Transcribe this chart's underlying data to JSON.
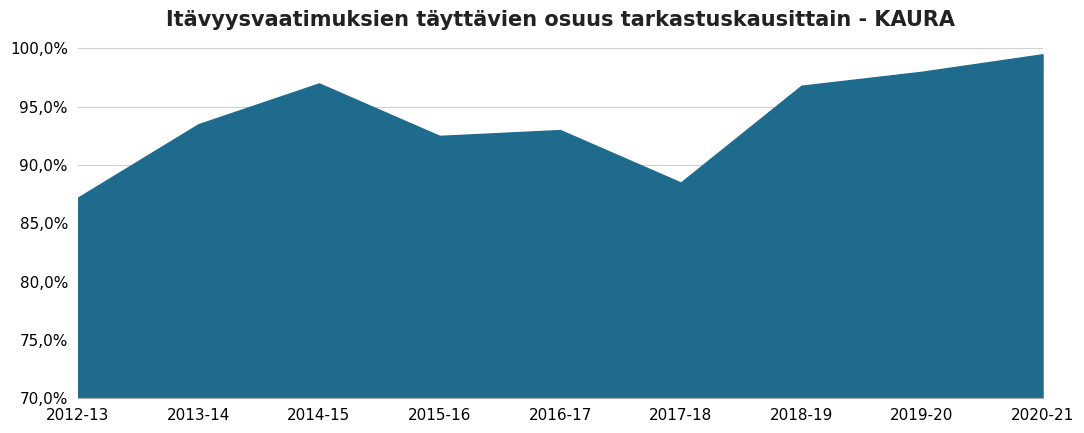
{
  "title": "Itävyysvaatimuksien täyttävien osuus tarkastuskausittain - KAURA",
  "categories": [
    "2012-13",
    "2013-14",
    "2014-15",
    "2015-16",
    "2016-17",
    "2017-18",
    "2018-19",
    "2019-20",
    "2020-21"
  ],
  "values": [
    0.872,
    0.935,
    0.97,
    0.925,
    0.93,
    0.885,
    0.968,
    0.98,
    0.995
  ],
  "fill_color": "#1f6b8e",
  "line_color": "#1f6b8e",
  "ylim_min": 0.7,
  "ylim_max": 1.005,
  "yticks": [
    0.7,
    0.75,
    0.8,
    0.85,
    0.9,
    0.95,
    1.0
  ],
  "background_color": "#ffffff",
  "grid_color": "#d0d0d0",
  "title_fontsize": 15,
  "tick_fontsize": 11
}
